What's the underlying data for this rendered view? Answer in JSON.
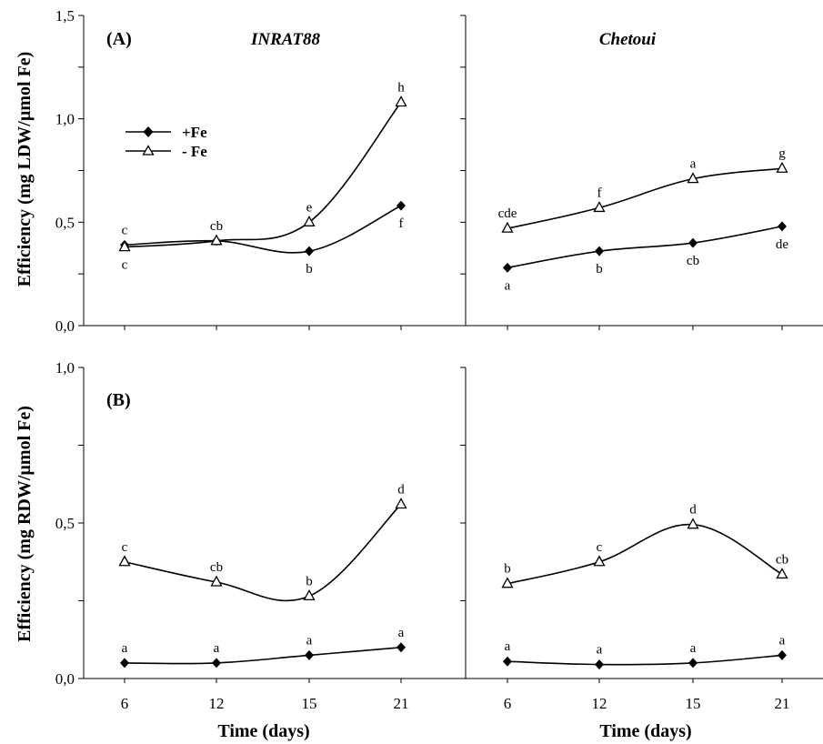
{
  "figure": {
    "ylabel_top": "Efficiency (mg LDW/µmol Fe)",
    "ylabel_bottom": "Efficiency (mg RDW/µmol Fe)",
    "xlabel": "Time (days)",
    "legend": {
      "fe_plus": "+Fe",
      "fe_minus": "- Fe"
    }
  },
  "chart_data": [
    {
      "type": "line",
      "panel_letter": "(A)",
      "title": "INRAT88",
      "categories": [
        "6",
        "12",
        "15",
        "21"
      ],
      "ylim": [
        0,
        1.5
      ],
      "yticks": [
        "0,0",
        "0,5",
        "1,0",
        "1,5"
      ],
      "series": [
        {
          "name": "+Fe",
          "marker": "filled-diamond",
          "values": [
            0.39,
            0.41,
            0.36,
            0.58
          ],
          "labels": [
            "c",
            "cb",
            "b",
            "f"
          ],
          "label_pos": [
            "above",
            "above",
            "below",
            "below"
          ]
        },
        {
          "name": "- Fe",
          "marker": "open-triangle",
          "values": [
            0.38,
            0.41,
            0.5,
            1.08
          ],
          "labels": [
            "c",
            "",
            "e",
            "h"
          ],
          "label_pos": [
            "below",
            "above",
            "above",
            "above"
          ]
        }
      ]
    },
    {
      "type": "line",
      "panel_letter": "",
      "title": "Chetoui",
      "categories": [
        "6",
        "12",
        "15",
        "21"
      ],
      "ylim": [
        0,
        1.5
      ],
      "series": [
        {
          "name": "+Fe",
          "marker": "filled-diamond",
          "values": [
            0.28,
            0.36,
            0.4,
            0.48
          ],
          "labels": [
            "a",
            "b",
            "cb",
            "de"
          ],
          "label_pos": [
            "below",
            "below",
            "below",
            "below"
          ]
        },
        {
          "name": "- Fe",
          "marker": "open-triangle",
          "values": [
            0.47,
            0.57,
            0.71,
            0.76
          ],
          "labels": [
            "cde",
            "f",
            "a",
            "g"
          ],
          "label_pos": [
            "above",
            "above",
            "above",
            "above"
          ]
        }
      ]
    },
    {
      "type": "line",
      "panel_letter": "(B)",
      "title": "",
      "categories": [
        "6",
        "12",
        "15",
        "21"
      ],
      "ylim": [
        0,
        1.0
      ],
      "yticks": [
        "0,0",
        "0,5",
        "1,0"
      ],
      "series": [
        {
          "name": "+Fe",
          "marker": "filled-diamond",
          "values": [
            0.05,
            0.05,
            0.075,
            0.1
          ],
          "labels": [
            "a",
            "a",
            "a",
            "a"
          ],
          "label_pos": [
            "above",
            "above",
            "above",
            "above"
          ]
        },
        {
          "name": "- Fe",
          "marker": "open-triangle",
          "values": [
            0.375,
            0.31,
            0.265,
            0.56
          ],
          "labels": [
            "c",
            "cb",
            "b",
            "d"
          ],
          "label_pos": [
            "above",
            "above",
            "above",
            "above"
          ]
        }
      ]
    },
    {
      "type": "line",
      "panel_letter": "",
      "title": "",
      "categories": [
        "6",
        "12",
        "15",
        "21"
      ],
      "ylim": [
        0,
        1.0
      ],
      "series": [
        {
          "name": "+Fe",
          "marker": "filled-diamond",
          "values": [
            0.055,
            0.045,
            0.05,
            0.075
          ],
          "labels": [
            "a",
            "a",
            "a",
            "a"
          ],
          "label_pos": [
            "above",
            "above",
            "above",
            "above"
          ]
        },
        {
          "name": "- Fe",
          "marker": "open-triangle",
          "values": [
            0.305,
            0.375,
            0.495,
            0.335
          ],
          "labels": [
            "b",
            "c",
            "d",
            "cb"
          ],
          "label_pos": [
            "above",
            "above",
            "above",
            "above"
          ]
        }
      ]
    }
  ]
}
